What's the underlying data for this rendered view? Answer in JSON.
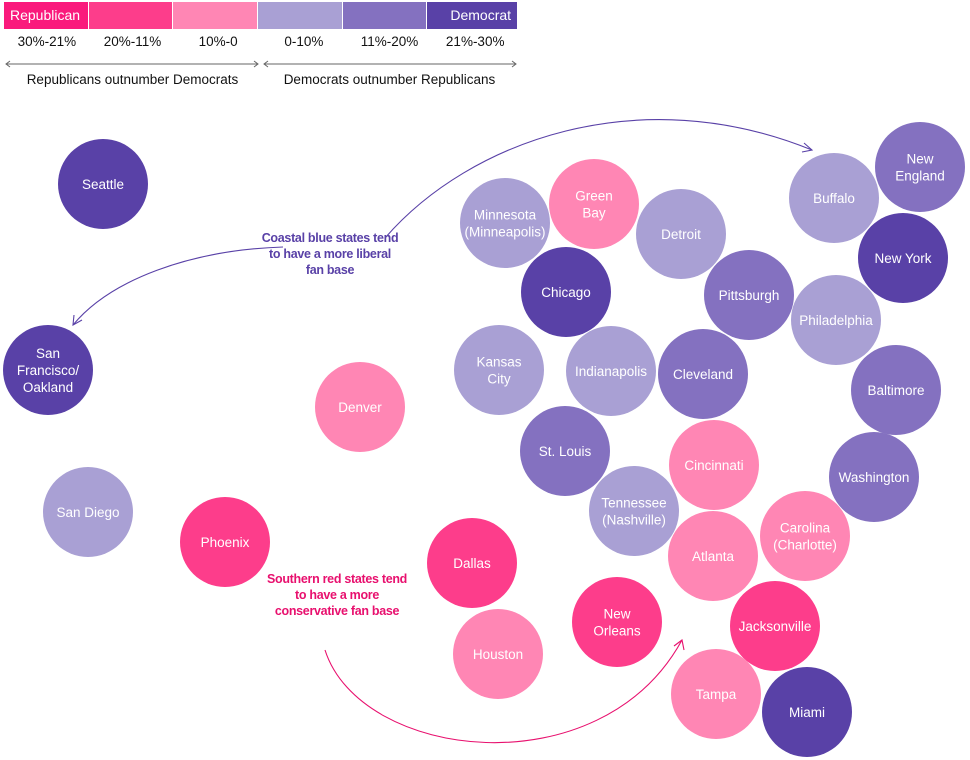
{
  "legend": {
    "categories": [
      {
        "key": "R3",
        "label": "Republican",
        "range": "30%-21%",
        "color": "#fa1a7c"
      },
      {
        "key": "R2",
        "label": "",
        "range": "20%-11%",
        "color": "#fd3d8b"
      },
      {
        "key": "R1",
        "label": "",
        "range": "10%-0",
        "color": "#ff86b4"
      },
      {
        "key": "D1",
        "label": "",
        "range": "0-10%",
        "color": "#a9a0d4"
      },
      {
        "key": "D2",
        "label": "",
        "range": "11%-20%",
        "color": "#8471c0"
      },
      {
        "key": "D3",
        "label": "Democrat",
        "range": "21%-30%",
        "color": "#5941a7"
      }
    ],
    "left_group": "Republicans outnumber Democrats",
    "right_group": "Democrats outnumber Republicans"
  },
  "annotations": {
    "blue": {
      "text": "Coastal blue states tend to have a more liberal fan base",
      "color": "#5941a7"
    },
    "red": {
      "text": "Southern red states tend to have a more conservative fan base",
      "color": "#e8106e"
    }
  },
  "chart_data": {
    "type": "bubble",
    "cities": [
      {
        "name": "Seattle",
        "lines": [
          "Seattle"
        ],
        "cat": "D3"
      },
      {
        "name": "San Francisco/Oakland",
        "lines": [
          "San",
          "Francisco/",
          "Oakland"
        ],
        "cat": "D3"
      },
      {
        "name": "San Diego",
        "lines": [
          "San Diego"
        ],
        "cat": "D1"
      },
      {
        "name": "Denver",
        "lines": [
          "Denver"
        ],
        "cat": "R1"
      },
      {
        "name": "Phoenix",
        "lines": [
          "Phoenix"
        ],
        "cat": "R2"
      },
      {
        "name": "Minnesota (Minneapolis)",
        "lines": [
          "Minnesota",
          "(Minneapolis)"
        ],
        "cat": "D1"
      },
      {
        "name": "Green Bay",
        "lines": [
          "Green",
          "Bay"
        ],
        "cat": "R1"
      },
      {
        "name": "Detroit",
        "lines": [
          "Detroit"
        ],
        "cat": "D1"
      },
      {
        "name": "Chicago",
        "lines": [
          "Chicago"
        ],
        "cat": "D3"
      },
      {
        "name": "Pittsburgh",
        "lines": [
          "Pittsburgh"
        ],
        "cat": "D2"
      },
      {
        "name": "Buffalo",
        "lines": [
          "Buffalo"
        ],
        "cat": "D1"
      },
      {
        "name": "New England",
        "lines": [
          "New",
          "England"
        ],
        "cat": "D2"
      },
      {
        "name": "New York",
        "lines": [
          "New York"
        ],
        "cat": "D3"
      },
      {
        "name": "Philadelphia",
        "lines": [
          "Philadelphia"
        ],
        "cat": "D1"
      },
      {
        "name": "Baltimore",
        "lines": [
          "Baltimore"
        ],
        "cat": "D2"
      },
      {
        "name": "Kansas City",
        "lines": [
          "Kansas",
          "City"
        ],
        "cat": "D1"
      },
      {
        "name": "Indianapolis",
        "lines": [
          "Indianapolis"
        ],
        "cat": "D1"
      },
      {
        "name": "Cleveland",
        "lines": [
          "Cleveland"
        ],
        "cat": "D2"
      },
      {
        "name": "St. Louis",
        "lines": [
          "St. Louis"
        ],
        "cat": "D2"
      },
      {
        "name": "Cincinnati",
        "lines": [
          "Cincinnati"
        ],
        "cat": "R1"
      },
      {
        "name": "Washington",
        "lines": [
          "Washington"
        ],
        "cat": "D2"
      },
      {
        "name": "Tennessee (Nashville)",
        "lines": [
          "Tennessee",
          "(Nashville)"
        ],
        "cat": "D1"
      },
      {
        "name": "Atlanta",
        "lines": [
          "Atlanta"
        ],
        "cat": "R1"
      },
      {
        "name": "Carolina (Charlotte)",
        "lines": [
          "Carolina",
          "(Charlotte)"
        ],
        "cat": "R1"
      },
      {
        "name": "Dallas",
        "lines": [
          "Dallas"
        ],
        "cat": "R2"
      },
      {
        "name": "Houston",
        "lines": [
          "Houston"
        ],
        "cat": "R1"
      },
      {
        "name": "New Orleans",
        "lines": [
          "New",
          "Orleans"
        ],
        "cat": "R2"
      },
      {
        "name": "Jacksonville",
        "lines": [
          "Jacksonville"
        ],
        "cat": "R2"
      },
      {
        "name": "Tampa",
        "lines": [
          "Tampa"
        ],
        "cat": "R1"
      },
      {
        "name": "Miami",
        "lines": [
          "Miami"
        ],
        "cat": "D3"
      }
    ]
  }
}
